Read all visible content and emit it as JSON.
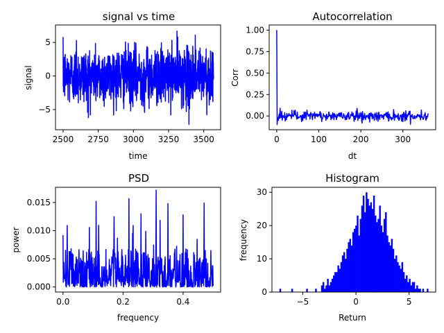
{
  "figure": {
    "background": "#ffffff",
    "line_color": "#0000ff"
  },
  "chart_data": [
    {
      "id": "signal",
      "type": "line",
      "title": "signal vs time",
      "xlabel": "time",
      "ylabel": "signal",
      "xlim": [
        2446,
        3620
      ],
      "ylim": [
        -8.0,
        7.6
      ],
      "xticks": [
        2500,
        2750,
        3000,
        3250,
        3500
      ],
      "xtick_labels": [
        "2500",
        "2750",
        "3000",
        "3250",
        "3500"
      ],
      "yticks": [
        -5,
        0,
        5
      ],
      "ytick_labels": [
        "−5",
        "0",
        "5"
      ],
      "x_start": 2500,
      "x_end": 3570,
      "n_points": 1070,
      "spread": 2.1,
      "extremes": [
        [
          2595,
          5.3
        ],
        [
          2680,
          -6.2
        ],
        [
          3080,
          -5.4
        ],
        [
          3310,
          6.7
        ],
        [
          3395,
          -7.2
        ],
        [
          3440,
          6.1
        ]
      ],
      "line_color": "#0000ff"
    },
    {
      "id": "autocorr",
      "type": "line",
      "title": "Autocorrelation",
      "xlabel": "dt",
      "ylabel": "Corr",
      "xlim": [
        -18,
        378
      ],
      "ylim": [
        -0.16,
        1.06
      ],
      "xticks": [
        0,
        100,
        200,
        300
      ],
      "xtick_labels": [
        "0",
        "100",
        "200",
        "300"
      ],
      "yticks": [
        0.0,
        0.25,
        0.5,
        0.75,
        1.0
      ],
      "ytick_labels": [
        "0.00",
        "0.25",
        "0.50",
        "0.75",
        "1.00"
      ],
      "x_start": 0,
      "x_end": 360,
      "lag0": 1.0,
      "noise_band": [
        -0.1,
        0.09
      ],
      "line_color": "#0000ff"
    },
    {
      "id": "psd",
      "type": "line",
      "title": "PSD",
      "xlabel": "frequency",
      "ylabel": "power",
      "xlim": [
        -0.025,
        0.525
      ],
      "ylim": [
        -0.0009,
        0.0177
      ],
      "xticks": [
        0.0,
        0.2,
        0.4
      ],
      "xtick_labels": [
        "0.0",
        "0.2",
        "0.4"
      ],
      "yticks": [
        0.0,
        0.005,
        0.01,
        0.015
      ],
      "ytick_labels": [
        "0.000",
        "0.005",
        "0.010",
        "0.015"
      ],
      "x_start": 0.0,
      "x_end": 0.5,
      "n_points": 536,
      "typical_max": 0.0085,
      "peaks": [
        [
          0.11,
          0.0152
        ],
        [
          0.17,
          0.0125
        ],
        [
          0.22,
          0.0157
        ],
        [
          0.26,
          0.013
        ],
        [
          0.31,
          0.0172
        ],
        [
          0.35,
          0.0148
        ],
        [
          0.4,
          0.0128
        ],
        [
          0.47,
          0.0149
        ]
      ],
      "line_color": "#0000ff"
    },
    {
      "id": "histogram",
      "type": "bar",
      "title": "Histogram",
      "xlabel": "Return",
      "ylabel": "frequency",
      "xlim": [
        -7.9,
        7.5
      ],
      "ylim": [
        0,
        31.5
      ],
      "xticks": [
        -5,
        0,
        5
      ],
      "xtick_labels": [
        "−5",
        "0",
        "5"
      ],
      "yticks": [
        0,
        10,
        20,
        30
      ],
      "ytick_labels": [
        "0",
        "10",
        "20",
        "30"
      ],
      "bin_start": -7.2,
      "bin_width": 0.14,
      "counts": [
        1,
        0,
        0,
        0,
        0,
        0,
        0,
        0,
        1,
        0,
        0,
        0,
        0,
        0,
        0,
        0,
        0,
        0,
        1,
        0,
        0,
        0,
        0,
        0,
        1,
        0,
        0,
        0,
        2,
        3,
        1,
        2,
        4,
        2,
        3,
        4,
        5,
        6,
        6,
        8,
        7,
        9,
        11,
        12,
        10,
        13,
        15,
        16,
        14,
        18,
        19,
        20,
        23,
        17,
        22,
        26,
        29,
        24,
        30,
        28,
        26,
        27,
        25,
        29,
        23,
        21,
        22,
        26,
        20,
        18,
        22,
        24,
        17,
        15,
        14,
        16,
        13,
        10,
        11,
        9,
        8,
        7,
        9,
        6,
        4,
        5,
        3,
        4,
        2,
        3,
        3,
        1,
        2,
        1,
        1,
        0,
        1,
        0,
        0,
        1
      ],
      "bar_color": "#0000ff"
    }
  ]
}
